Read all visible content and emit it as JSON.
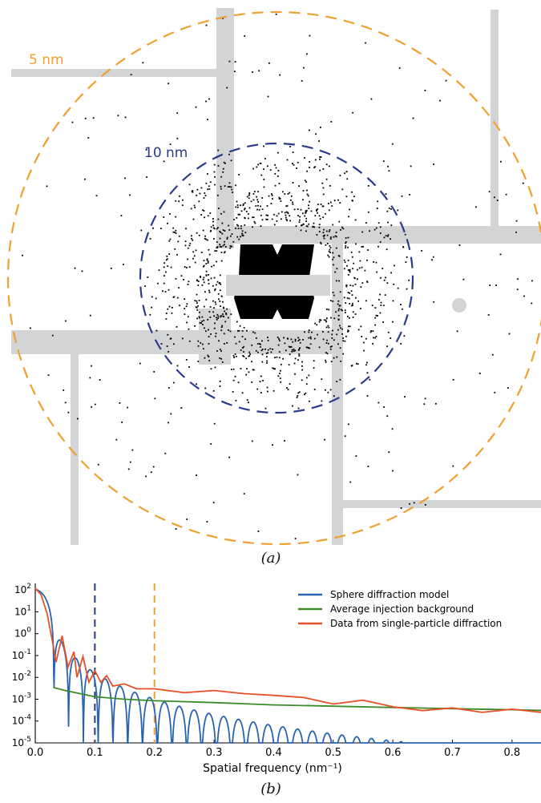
{
  "panel_a": {
    "caption": "(a)",
    "ring_labels": [
      {
        "text": "5 nm",
        "color": "#f0a030"
      },
      {
        "text": "10 nm",
        "color": "#2c3a8c"
      }
    ]
  },
  "panel_b": {
    "caption": "(b)"
  },
  "chart_data": {
    "type": "line",
    "xlabel": "Spatial frequency (nm⁻¹)",
    "ylabel": "",
    "xlim": [
      0.0,
      0.85
    ],
    "ylim": [
      1e-05,
      200
    ],
    "yscale": "log",
    "x_ticks": [
      "0.0",
      "0.1",
      "0.2",
      "0.3",
      "0.4",
      "0.5",
      "0.6",
      "0.7",
      "0.8"
    ],
    "y_ticks": [
      "10⁵",
      "10⁴",
      "10⁳",
      "10⁲",
      "10¹",
      "10⁰",
      "10¹",
      "10²"
    ],
    "y_tick_exponents": [
      -5,
      -4,
      -3,
      -2,
      -1,
      0,
      1,
      2
    ],
    "vertical_lines": [
      {
        "x": 0.1,
        "color": "#2c3a8c",
        "style": "dashed"
      },
      {
        "x": 0.2,
        "color": "#f0a030",
        "style": "dashed"
      }
    ],
    "legend_position": "top-right",
    "series": [
      {
        "name": "Sphere diffraction model",
        "color": "#2a64b0",
        "model": {
          "amplitude": 100,
          "first_zero": 0.0312,
          "zero_spacing": 0.0248,
          "floor": 1e-05
        }
      },
      {
        "name": "Average injection background",
        "color": "#3c8c2a",
        "x": [
          0.03,
          0.05,
          0.08,
          0.1,
          0.15,
          0.2,
          0.3,
          0.4,
          0.5,
          0.6,
          0.7,
          0.8,
          0.85
        ],
        "y": [
          0.0035,
          0.0025,
          0.0017,
          0.0013,
          0.001,
          0.00085,
          0.0007,
          0.00055,
          0.00048,
          0.00042,
          0.00037,
          0.00033,
          0.00031
        ]
      },
      {
        "name": "Data from single-particle diffraction",
        "color": "#e8502a",
        "x": [
          0.0,
          0.01,
          0.02,
          0.03,
          0.035,
          0.045,
          0.055,
          0.065,
          0.07,
          0.08,
          0.09,
          0.1,
          0.11,
          0.12,
          0.13,
          0.15,
          0.17,
          0.2,
          0.25,
          0.3,
          0.35,
          0.4,
          0.45,
          0.5,
          0.55,
          0.6,
          0.65,
          0.7,
          0.75,
          0.8,
          0.85
        ],
        "y": [
          120,
          60,
          8,
          0.3,
          0.05,
          0.8,
          0.03,
          0.15,
          0.01,
          0.09,
          0.006,
          0.02,
          0.006,
          0.012,
          0.004,
          0.005,
          0.003,
          0.003,
          0.002,
          0.0025,
          0.0018,
          0.0015,
          0.0012,
          0.0006,
          0.0009,
          0.00045,
          0.0003,
          0.0004,
          0.00025,
          0.00035,
          0.00025
        ]
      }
    ]
  }
}
